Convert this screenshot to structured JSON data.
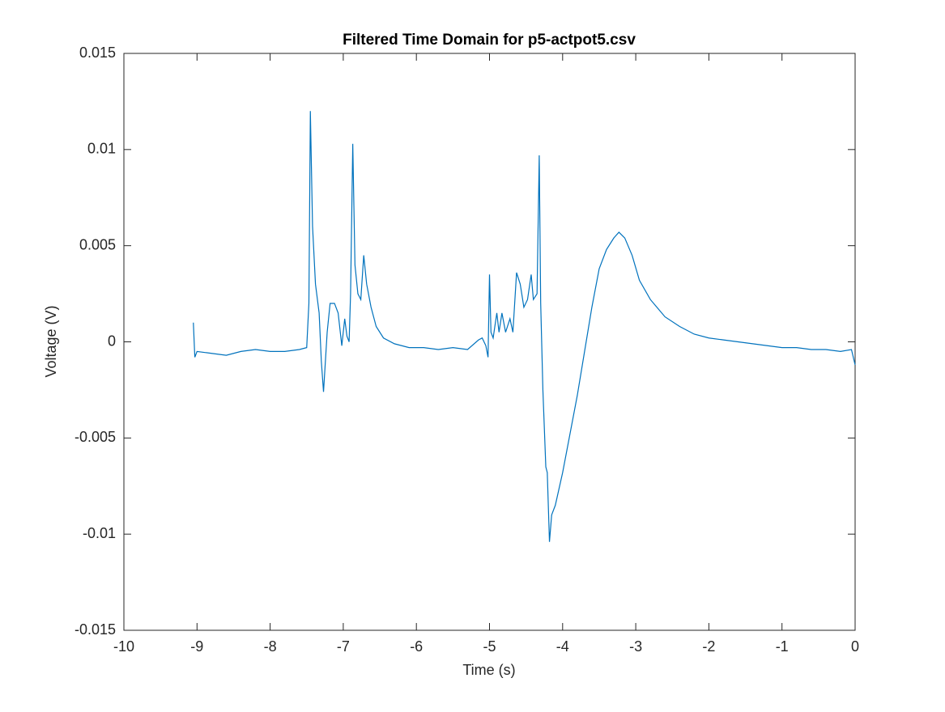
{
  "chart_data": {
    "type": "line",
    "title": "Filtered Time Domain for p5-actpot5.csv",
    "x_label": "Time (s)",
    "y_label": "Voltage (V)",
    "xlim": [
      -10,
      0
    ],
    "xticks": [
      -10,
      -9,
      -8,
      -7,
      -6,
      -5,
      -4,
      -3,
      -2,
      -1,
      0
    ],
    "ylim": [
      -0.015,
      0.015
    ],
    "yticks": [
      -0.015,
      -0.01,
      -0.005,
      0,
      0.005,
      0.01,
      0.015
    ],
    "grid": false,
    "box": true,
    "x": [
      -9.05,
      -9.03,
      -9.0,
      -8.8,
      -8.6,
      -8.4,
      -8.2,
      -8.0,
      -7.8,
      -7.6,
      -7.5,
      -7.47,
      -7.45,
      -7.42,
      -7.38,
      -7.33,
      -7.3,
      -7.27,
      -7.22,
      -7.18,
      -7.12,
      -7.07,
      -7.02,
      -6.98,
      -6.95,
      -6.92,
      -6.9,
      -6.87,
      -6.84,
      -6.8,
      -6.76,
      -6.72,
      -6.68,
      -6.62,
      -6.55,
      -6.45,
      -6.3,
      -6.1,
      -5.9,
      -5.7,
      -5.5,
      -5.3,
      -5.15,
      -5.1,
      -5.05,
      -5.02,
      -5.0,
      -4.98,
      -4.95,
      -4.9,
      -4.87,
      -4.83,
      -4.78,
      -4.72,
      -4.68,
      -4.63,
      -4.58,
      -4.53,
      -4.48,
      -4.43,
      -4.4,
      -4.35,
      -4.32,
      -4.3,
      -4.27,
      -4.23,
      -4.21,
      -4.18,
      -4.15,
      -4.1,
      -4.0,
      -3.9,
      -3.8,
      -3.7,
      -3.6,
      -3.5,
      -3.4,
      -3.3,
      -3.23,
      -3.15,
      -3.05,
      -2.95,
      -2.8,
      -2.6,
      -2.4,
      -2.2,
      -2.0,
      -1.8,
      -1.6,
      -1.4,
      -1.2,
      -1.0,
      -0.8,
      -0.6,
      -0.4,
      -0.2,
      -0.05,
      0
    ],
    "series": [
      {
        "color": "#0072bd",
        "values": [
          0.001,
          -0.0008,
          -0.0005,
          -0.0006,
          -0.0007,
          -0.0005,
          -0.0004,
          -0.0005,
          -0.0005,
          -0.0004,
          -0.0003,
          0.002,
          0.012,
          0.006,
          0.003,
          0.0015,
          -0.001,
          -0.0026,
          0.0005,
          0.002,
          0.002,
          0.0015,
          -0.0002,
          0.0012,
          0.0003,
          0,
          0.0025,
          0.0103,
          0.004,
          0.0025,
          0.0022,
          0.0045,
          0.003,
          0.0018,
          0.0008,
          0.0002,
          -0.0001,
          -0.0003,
          -0.0003,
          -0.0004,
          -0.0003,
          -0.0004,
          0.0001,
          0.0002,
          -0.0002,
          -0.0008,
          0.0035,
          0.0005,
          0.0002,
          0.0015,
          0.0005,
          0.0015,
          0.0005,
          0.0012,
          0.0005,
          0.0036,
          0.003,
          0.0018,
          0.0022,
          0.0035,
          0.0022,
          0.0025,
          0.0097,
          0.002,
          -0.0025,
          -0.0065,
          -0.0068,
          -0.0104,
          -0.009,
          -0.0085,
          -0.0068,
          -0.0048,
          -0.0028,
          -0.0005,
          0.0018,
          0.0038,
          0.0048,
          0.0054,
          0.0057,
          0.0054,
          0.0045,
          0.0032,
          0.0022,
          0.0013,
          0.0008,
          0.0004,
          0.0002,
          0.0001,
          0,
          -0.0001,
          -0.0002,
          -0.0003,
          -0.0003,
          -0.0004,
          -0.0004,
          -0.0005,
          -0.0004,
          -0.0012
        ]
      }
    ]
  }
}
